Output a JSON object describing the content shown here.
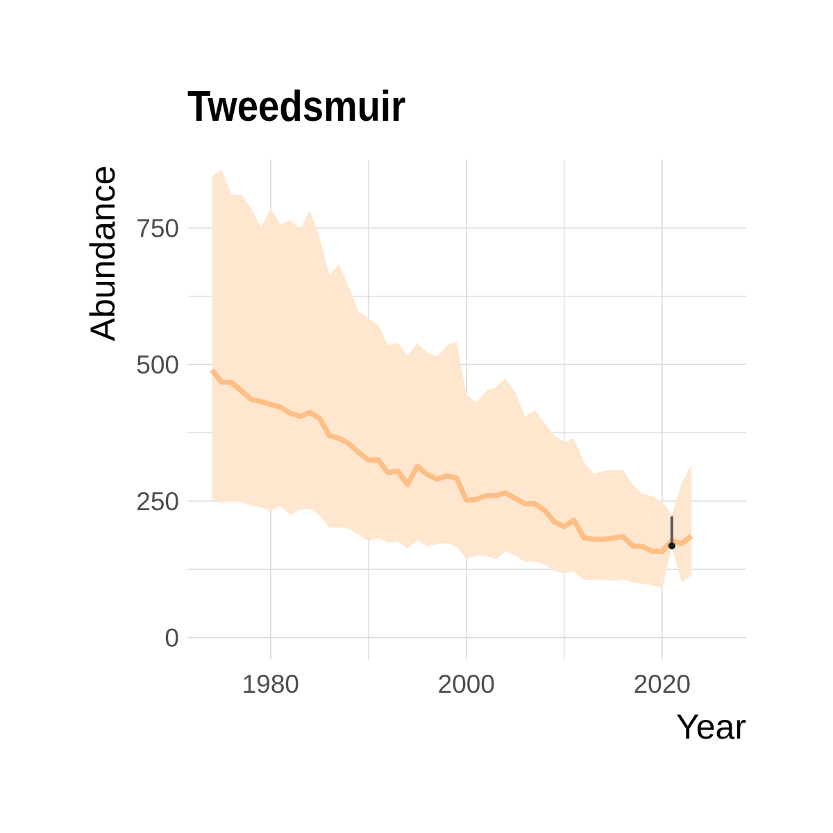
{
  "chart_data": {
    "type": "line",
    "title": "Tweedsmuir",
    "xlabel": "Year",
    "ylabel": "Abundance",
    "xlim": [
      1971.5,
      2028.6
    ],
    "ylim": [
      -40,
      875
    ],
    "x_ticks": [
      1980,
      2000,
      2020
    ],
    "x_minor": [
      1970,
      1990,
      2010
    ],
    "y_ticks": [
      0,
      250,
      500,
      750
    ],
    "y_minor": [
      125,
      375,
      625
    ],
    "grid": true,
    "legend": "none",
    "colors": {
      "line": "#fdbf85",
      "band": "#ffe6cf",
      "point": "#1a1a1a",
      "errorbar": "#5a5a5a",
      "grid": "#d9d9d9"
    },
    "series": [
      {
        "x": [
          1974,
          1975,
          1976,
          1977,
          1978,
          1979,
          1980,
          1981,
          1982,
          1983,
          1984,
          1985,
          1986,
          1987,
          1988,
          1989,
          1990,
          1991,
          1992,
          1993,
          1994,
          1995,
          1996,
          1997,
          1998,
          1999,
          2000,
          2001,
          2002,
          2003,
          2004,
          2005,
          2006,
          2007,
          2008,
          2009,
          2010,
          2011,
          2012,
          2013,
          2014,
          2015,
          2016,
          2017,
          2018,
          2019,
          2020,
          2021,
          2022,
          2023
        ],
        "y": [
          490,
          468,
          467,
          452,
          436,
          432,
          427,
          422,
          411,
          405,
          412,
          402,
          370,
          365,
          355,
          339,
          325,
          325,
          302,
          305,
          280,
          314,
          299,
          290,
          296,
          292,
          252,
          253,
          260,
          260,
          265,
          255,
          245,
          245,
          233,
          212,
          203,
          215,
          183,
          180,
          180,
          182,
          185,
          168,
          167,
          158,
          158,
          178,
          172,
          186
        ],
        "lower": [
          255,
          247,
          249,
          248,
          242,
          239,
          231,
          241,
          225,
          234,
          236,
          224,
          201,
          202,
          199,
          188,
          177,
          182,
          174,
          176,
          163,
          178,
          167,
          171,
          173,
          166,
          144,
          150,
          150,
          144,
          158,
          151,
          138,
          140,
          133,
          122,
          118,
          121,
          105,
          105,
          106,
          104,
          107,
          101,
          99,
          96,
          90,
          165,
          102,
          114
        ],
        "upper": [
          845,
          857,
          810,
          811,
          786,
          751,
          786,
          757,
          764,
          748,
          782,
          733,
          663,
          684,
          642,
          597,
          585,
          573,
          535,
          540,
          516,
          540,
          522,
          515,
          535,
          542,
          445,
          430,
          452,
          458,
          475,
          449,
          405,
          417,
          393,
          370,
          358,
          365,
          322,
          300,
          305,
          307,
          307,
          280,
          263,
          259,
          249,
          225,
          282,
          317
        ]
      }
    ],
    "errorbar": {
      "x": 2021,
      "y": 168,
      "ymin": 168,
      "ymax": 222
    }
  }
}
